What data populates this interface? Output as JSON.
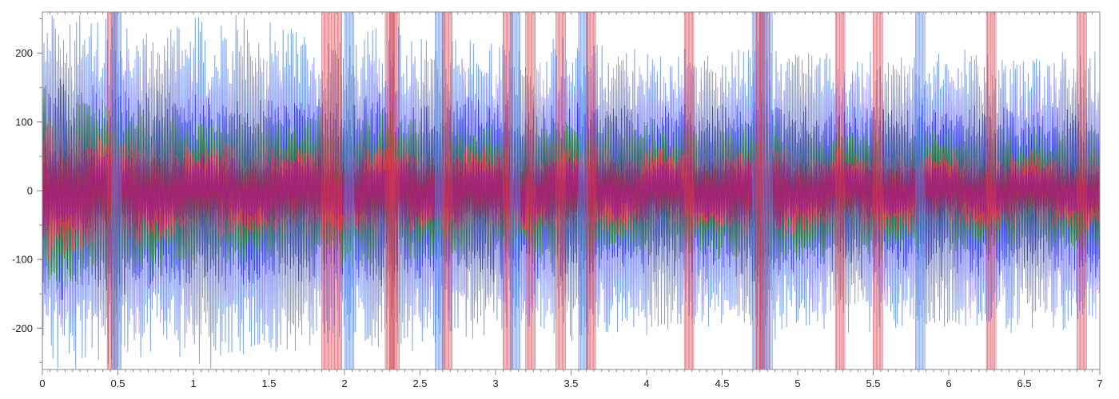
{
  "chart_data": {
    "type": "line",
    "title": "",
    "xlabel": "",
    "ylabel": "",
    "xlim": [
      0,
      7
    ],
    "ylim": [
      -260,
      260
    ],
    "x_ticks": [
      0,
      0.5,
      1,
      1.5,
      2,
      2.5,
      3,
      3.5,
      4,
      4.5,
      5,
      5.5,
      6,
      6.5,
      7
    ],
    "x_tick_labels": [
      "0",
      "0.5",
      "1",
      "1.5",
      "2",
      "2.5",
      "3",
      "3.5",
      "4",
      "4.5",
      "5",
      "5.5",
      "6",
      "6.5",
      "7"
    ],
    "x_minor_step": 0.05,
    "y_ticks": [
      -200,
      -100,
      0,
      100,
      200
    ],
    "y_tick_labels": [
      "-200",
      "-100",
      "0",
      "100",
      "200"
    ],
    "grid": false,
    "legend": "none",
    "envelope_x": [
      0,
      0.25,
      0.5,
      0.75,
      1,
      1.25,
      1.5,
      1.75,
      2,
      2.25,
      2.5,
      2.75,
      3,
      3.25,
      3.5,
      3.75,
      4,
      4.25,
      4.5,
      4.75,
      5,
      5.25,
      5.5,
      5.75,
      6,
      6.25,
      6.5,
      6.75,
      7
    ],
    "series": [
      {
        "color": "#4f86e8",
        "peak": [
          260,
          260,
          260,
          240,
          260,
          250,
          240,
          230,
          220,
          235,
          230,
          220,
          215,
          210,
          220,
          215,
          210,
          205,
          200,
          215,
          205,
          200,
          200,
          200,
          205,
          200,
          200,
          200,
          210
        ]
      },
      {
        "color": "#9b8ff0",
        "peak": [
          215,
          205,
          220,
          200,
          215,
          205,
          200,
          195,
          190,
          200,
          195,
          190,
          190,
          185,
          195,
          190,
          185,
          185,
          180,
          195,
          185,
          180,
          180,
          180,
          185,
          180,
          180,
          180,
          190
        ]
      },
      {
        "color": "#2830e0",
        "peak": [
          165,
          150,
          150,
          145,
          140,
          140,
          135,
          135,
          130,
          135,
          130,
          130,
          130,
          125,
          130,
          125,
          125,
          120,
          120,
          135,
          125,
          120,
          120,
          120,
          120,
          120,
          118,
          118,
          120
        ]
      },
      {
        "color": "#2f7a3a",
        "peak": [
          160,
          140,
          130,
          120,
          115,
          110,
          110,
          105,
          105,
          115,
          105,
          100,
          100,
          100,
          100,
          100,
          98,
          95,
          95,
          110,
          95,
          95,
          92,
          90,
          90,
          90,
          88,
          88,
          90
        ]
      },
      {
        "color": "#d83a48",
        "peak": [
          100,
          95,
          80,
          75,
          70,
          68,
          66,
          65,
          64,
          66,
          64,
          62,
          62,
          60,
          62,
          60,
          58,
          58,
          56,
          70,
          56,
          55,
          55,
          54,
          54,
          52,
          52,
          52,
          52
        ]
      },
      {
        "color": "#9a1f7a",
        "peak": [
          70,
          65,
          60,
          55,
          52,
          50,
          50,
          48,
          48,
          50,
          48,
          46,
          46,
          46,
          46,
          45,
          45,
          44,
          44,
          55,
          44,
          43,
          43,
          42,
          42,
          42,
          40,
          40,
          40
        ]
      }
    ],
    "spike_x": [
      0.43,
      0.46,
      1.85,
      1.92,
      2.0,
      2.27,
      2.3,
      2.6,
      2.65,
      3.05,
      3.1,
      3.2,
      3.4,
      3.55,
      3.6,
      4.25,
      4.7,
      4.72,
      4.75,
      4.77,
      5.25,
      5.5,
      5.78,
      6.25,
      6.85
    ]
  }
}
